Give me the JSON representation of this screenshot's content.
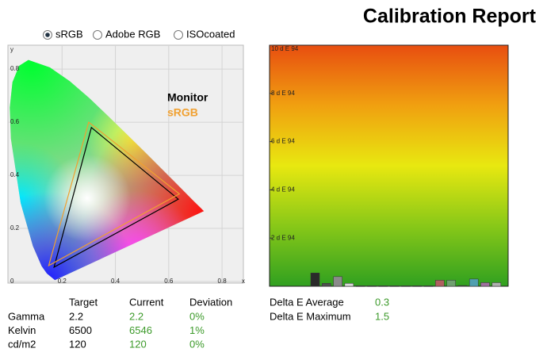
{
  "title": "Calibration Report",
  "color_spaces": {
    "options": [
      "sRGB",
      "Adobe RGB",
      "ISOcoated"
    ],
    "selected": 0
  },
  "measurements": {
    "columns": [
      "Target",
      "Current",
      "Deviation"
    ],
    "rows": [
      [
        "Gamma",
        "2.2",
        "2.2",
        "0%"
      ],
      [
        "Kelvin",
        "6500",
        "6546",
        "1%"
      ],
      [
        "cd/m2",
        "120",
        "120",
        "0%"
      ]
    ]
  },
  "delta_e": {
    "rows": [
      [
        "Delta E Average",
        "0.3"
      ],
      [
        "Delta E Maximum",
        "1.5"
      ]
    ]
  },
  "chart_data": [
    {
      "type": "gamut",
      "xlabel": "x",
      "ylabel": "y",
      "xlim": [
        0,
        0.88
      ],
      "ylim": [
        0,
        0.89
      ],
      "xticks": [
        0.2,
        0.4,
        0.6,
        0.8
      ],
      "yticks": [
        0,
        0.2,
        0.4,
        0.6,
        0.8
      ],
      "grid": true,
      "series": [
        {
          "name": "Monitor",
          "color": "#000000",
          "x": [
            0.636,
            0.31,
            0.17
          ],
          "values": [
            0.31,
            0.58,
            0.054
          ]
        },
        {
          "name": "sRGB",
          "color": "#f0a030",
          "x": [
            0.64,
            0.3,
            0.15
          ],
          "values": [
            0.33,
            0.6,
            0.06
          ]
        }
      ]
    },
    {
      "type": "bar",
      "ylim": [
        0,
        10
      ],
      "yticks": [
        {
          "value": 2,
          "label": "2 d E 94"
        },
        {
          "value": 4,
          "label": "4 d E 94"
        },
        {
          "value": 6,
          "label": "6 d E 94"
        },
        {
          "value": 8,
          "label": "8 d E 94"
        },
        {
          "value": 10,
          "label": "10 d E 94"
        }
      ],
      "categories": [
        null,
        null,
        null,
        null,
        null,
        null,
        null,
        null,
        null,
        null,
        null,
        null,
        null,
        null,
        null,
        null,
        null
      ],
      "values": [
        0.55,
        0.12,
        0.4,
        0.12,
        0.02,
        0.02,
        0.02,
        0.02,
        0.02,
        0.02,
        0.02,
        0.25,
        0.25,
        0.03,
        0.3,
        0.15,
        0.15
      ],
      "colors": [
        "#2a2a2a",
        "#505050",
        "#8a8a8a",
        "#d8d8d8",
        "#404040",
        "#404040",
        "#404040",
        "#404040",
        "#404040",
        "#404040",
        "#404040",
        "#b06060",
        "#70a070",
        "#404040",
        "#50a0b0",
        "#a070a0",
        "#b0b0b0"
      ]
    }
  ]
}
